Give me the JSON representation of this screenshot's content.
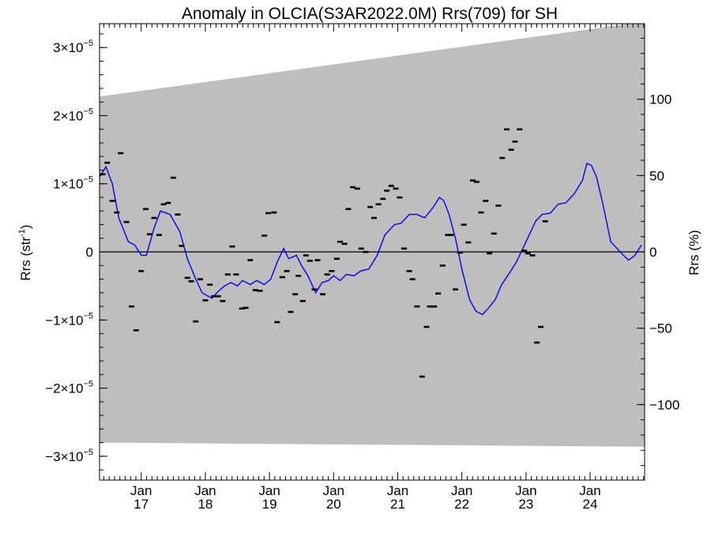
{
  "chart_data": {
    "type": "line",
    "title": "Anomaly in OLCIA(S3AR2022.0M) Rrs(709) for SH",
    "ylabel_left": "Rrs (str",
    "ylabel_left_sup": "-1",
    "ylabel_left_close": ")",
    "ylabel_right": "Rrs (%)",
    "ylim": [
      -3.35e-05,
      3.35e-05
    ],
    "y2lim": [
      149.5,
      -149.5
    ],
    "xlim": [
      2016.35,
      2024.85
    ],
    "x_ticks": [
      {
        "label": "Jan",
        "year": "17",
        "x": 2017.0
      },
      {
        "label": "Jan",
        "year": "18",
        "x": 2018.0
      },
      {
        "label": "Jan",
        "year": "19",
        "x": 2019.0
      },
      {
        "label": "Jan",
        "year": "20",
        "x": 2020.0
      },
      {
        "label": "Jan",
        "year": "21",
        "x": 2021.0
      },
      {
        "label": "Jan",
        "year": "22",
        "x": 2022.0
      },
      {
        "label": "Jan",
        "year": "23",
        "x": 2023.0
      },
      {
        "label": "Jan",
        "year": "24",
        "x": 2024.0
      }
    ],
    "y_ticks_left": [
      {
        "mant": "3×10",
        "exp": "−5",
        "v": 3e-05
      },
      {
        "mant": "2×10",
        "exp": "−5",
        "v": 2e-05
      },
      {
        "mant": "1×10",
        "exp": "−5",
        "v": 1e-05
      },
      {
        "mant": "0",
        "exp": "",
        "v": 0
      },
      {
        "mant": "−1×10",
        "exp": "−5",
        "v": -1e-05
      },
      {
        "mant": "−2×10",
        "exp": "−5",
        "v": -2e-05
      },
      {
        "mant": "−3×10",
        "exp": "−5",
        "v": -3e-05
      }
    ],
    "y_ticks_right": [
      {
        "label": "−100",
        "v": -100
      },
      {
        "label": "−50",
        "v": -50
      },
      {
        "label": "0",
        "v": 0
      },
      {
        "label": "50",
        "v": 50
      },
      {
        "label": "100",
        "v": 100
      }
    ],
    "band": {
      "color": "#bebebe",
      "upper": [
        [
          2016.35,
          2.28e-05
        ],
        [
          2024.85,
          3.38e-05
        ]
      ],
      "lower": [
        [
          2016.35,
          -2.8e-05
        ],
        [
          2024.85,
          -2.86e-05
        ]
      ]
    },
    "series": [
      {
        "kind": "line",
        "color": "#0000ff",
        "points": [
          [
            2016.35,
            1.1e-05
          ],
          [
            2016.45,
            1.25e-05
          ],
          [
            2016.55,
            1e-05
          ],
          [
            2016.65,
            5e-06
          ],
          [
            2016.8,
            1.5e-06
          ],
          [
            2016.9,
            1e-06
          ],
          [
            2017.0,
            -5e-07
          ],
          [
            2017.08,
            -5e-07
          ],
          [
            2017.2,
            3.5e-06
          ],
          [
            2017.3,
            6e-06
          ],
          [
            2017.45,
            5.5e-06
          ],
          [
            2017.6,
            3e-06
          ],
          [
            2017.72,
            -1e-06
          ],
          [
            2017.85,
            -4e-06
          ],
          [
            2017.95,
            -6e-06
          ],
          [
            2018.1,
            -6.8e-06
          ],
          [
            2018.2,
            -5.8e-06
          ],
          [
            2018.3,
            -5e-06
          ],
          [
            2018.4,
            -4.5e-06
          ],
          [
            2018.5,
            -5e-06
          ],
          [
            2018.58,
            -4.2e-06
          ],
          [
            2018.7,
            -4.8e-06
          ],
          [
            2018.8,
            -4.2e-06
          ],
          [
            2018.92,
            -4.8e-06
          ],
          [
            2019.02,
            -4e-06
          ],
          [
            2019.12,
            -1.5e-06
          ],
          [
            2019.22,
            5e-07
          ],
          [
            2019.3,
            -1e-06
          ],
          [
            2019.42,
            -5e-07
          ],
          [
            2019.5,
            -2e-06
          ],
          [
            2019.6,
            -3.5e-06
          ],
          [
            2019.72,
            -6e-06
          ],
          [
            2019.82,
            -4.5e-06
          ],
          [
            2019.92,
            -4.2e-06
          ],
          [
            2020.0,
            -3.5e-06
          ],
          [
            2020.1,
            -4.2e-06
          ],
          [
            2020.2,
            -3.3e-06
          ],
          [
            2020.32,
            -3.5e-06
          ],
          [
            2020.42,
            -2.8e-06
          ],
          [
            2020.55,
            -2.5e-06
          ],
          [
            2020.68,
            -5e-07
          ],
          [
            2020.8,
            2.5e-06
          ],
          [
            2020.95,
            4e-06
          ],
          [
            2021.05,
            4.2e-06
          ],
          [
            2021.18,
            5.5e-06
          ],
          [
            2021.3,
            5.5e-06
          ],
          [
            2021.42,
            5e-06
          ],
          [
            2021.55,
            6.5e-06
          ],
          [
            2021.65,
            8e-06
          ],
          [
            2021.72,
            7.5e-06
          ],
          [
            2021.8,
            5.5e-06
          ],
          [
            2021.9,
            2e-06
          ],
          [
            2022.0,
            -2.5e-06
          ],
          [
            2022.12,
            -7e-06
          ],
          [
            2022.22,
            -8.7e-06
          ],
          [
            2022.32,
            -9.2e-06
          ],
          [
            2022.42,
            -8.2e-06
          ],
          [
            2022.52,
            -7e-06
          ],
          [
            2022.62,
            -4.8e-06
          ],
          [
            2022.75,
            -3e-06
          ],
          [
            2022.85,
            -1.5e-06
          ],
          [
            2022.95,
            5e-07
          ],
          [
            2023.05,
            2.5e-06
          ],
          [
            2023.15,
            4.5e-06
          ],
          [
            2023.25,
            5.5e-06
          ],
          [
            2023.38,
            5.7e-06
          ],
          [
            2023.5,
            7e-06
          ],
          [
            2023.62,
            7.2e-06
          ],
          [
            2023.75,
            8.5e-06
          ],
          [
            2023.88,
            1.05e-05
          ],
          [
            2023.95,
            1.3e-05
          ],
          [
            2024.02,
            1.27e-05
          ],
          [
            2024.1,
            1.1e-05
          ],
          [
            2024.2,
            7e-06
          ],
          [
            2024.32,
            1.5e-06
          ],
          [
            2024.42,
            5e-07
          ],
          [
            2024.52,
            -5e-07
          ],
          [
            2024.6,
            -1.2e-06
          ],
          [
            2024.7,
            -5e-07
          ],
          [
            2024.8,
            1e-06
          ]
        ]
      },
      {
        "kind": "marker",
        "marker": "dash",
        "color": "#000000",
        "points": [
          [
            2016.4,
            1.14e-05
          ],
          [
            2016.47,
            1.31e-05
          ],
          [
            2016.55,
            7.5e-06
          ],
          [
            2016.62,
            5.8e-06
          ],
          [
            2016.68,
            1.45e-05
          ],
          [
            2016.77,
            4.4e-06
          ],
          [
            2016.85,
            -8e-06
          ],
          [
            2016.92,
            -1.15e-05
          ],
          [
            2017.0,
            -2.8e-06
          ],
          [
            2017.07,
            6.3e-06
          ],
          [
            2017.13,
            2.6e-06
          ],
          [
            2017.2,
            5e-06
          ],
          [
            2017.28,
            2.5e-06
          ],
          [
            2017.35,
            7e-06
          ],
          [
            2017.42,
            7.2e-06
          ],
          [
            2017.5,
            1.09e-05
          ],
          [
            2017.57,
            5.5e-06
          ],
          [
            2017.63,
            9e-07
          ],
          [
            2017.72,
            -3.8e-06
          ],
          [
            2017.78,
            -4.3e-06
          ],
          [
            2017.85,
            -1.02e-05
          ],
          [
            2017.92,
            -4e-06
          ],
          [
            2018.0,
            -7.1e-06
          ],
          [
            2018.07,
            -4.8e-06
          ],
          [
            2018.13,
            -6.5e-06
          ],
          [
            2018.2,
            -6.5e-06
          ],
          [
            2018.27,
            -7.2e-06
          ],
          [
            2018.35,
            -3.3e-06
          ],
          [
            2018.42,
            8e-07
          ],
          [
            2018.48,
            -3.3e-06
          ],
          [
            2018.57,
            -8.3e-06
          ],
          [
            2018.63,
            -8.2e-06
          ],
          [
            2018.7,
            -1.2e-06
          ],
          [
            2018.78,
            -5.6e-06
          ],
          [
            2018.85,
            -5.7e-06
          ],
          [
            2018.92,
            2.4e-06
          ],
          [
            2018.98,
            5.7e-06
          ],
          [
            2019.07,
            5.8e-06
          ],
          [
            2019.12,
            -1.03e-05
          ],
          [
            2019.2,
            -3.7e-06
          ],
          [
            2019.27,
            -2.8e-06
          ],
          [
            2019.33,
            -8.8e-06
          ],
          [
            2019.4,
            -6.2e-06
          ],
          [
            2019.45,
            -3.5e-06
          ],
          [
            2019.52,
            -7.2e-06
          ],
          [
            2019.57,
            -5e-07
          ],
          [
            2019.63,
            -1.3e-06
          ],
          [
            2019.7,
            -5.5e-06
          ],
          [
            2019.75,
            -1.2e-06
          ],
          [
            2019.83,
            -6.2e-06
          ],
          [
            2019.9,
            -3.3e-06
          ],
          [
            2019.97,
            -2.8e-06
          ],
          [
            2020.05,
            -1e-06
          ],
          [
            2020.1,
            1.5e-06
          ],
          [
            2020.17,
            1.2e-06
          ],
          [
            2020.23,
            6.3e-06
          ],
          [
            2020.3,
            9.5e-06
          ],
          [
            2020.37,
            9.3e-06
          ],
          [
            2020.43,
            5e-07
          ],
          [
            2020.5,
            0.0
          ],
          [
            2020.57,
            6.6e-06
          ],
          [
            2020.63,
            5e-06
          ],
          [
            2020.7,
            7e-06
          ],
          [
            2020.77,
            7.8e-06
          ],
          [
            2020.83,
            9e-06
          ],
          [
            2020.9,
            9.7e-06
          ],
          [
            2020.97,
            9.3e-06
          ],
          [
            2021.03,
            8e-06
          ],
          [
            2021.1,
            5e-07
          ],
          [
            2021.18,
            -2.8e-06
          ],
          [
            2021.23,
            -4e-06
          ],
          [
            2021.3,
            -8e-06
          ],
          [
            2021.38,
            -1.83e-05
          ],
          [
            2021.45,
            -1.1e-05
          ],
          [
            2021.5,
            -8e-06
          ],
          [
            2021.57,
            -8e-06
          ],
          [
            2021.63,
            -6.1e-06
          ],
          [
            2021.7,
            -2e-06
          ],
          [
            2021.78,
            2.5e-06
          ],
          [
            2021.83,
            2.5e-06
          ],
          [
            2021.9,
            -5.5e-06
          ],
          [
            2021.97,
            -1e-07
          ],
          [
            2022.03,
            4e-06
          ],
          [
            2022.1,
            1.4e-06
          ],
          [
            2022.17,
            1.05e-05
          ],
          [
            2022.23,
            1.03e-05
          ],
          [
            2022.3,
            5.8e-06
          ],
          [
            2022.37,
            7.5e-06
          ],
          [
            2022.43,
            -2e-07
          ],
          [
            2022.5,
            2.7e-06
          ],
          [
            2022.57,
            6.8e-06
          ],
          [
            2022.63,
            1.38e-05
          ],
          [
            2022.7,
            1.8e-05
          ],
          [
            2022.77,
            1.5e-05
          ],
          [
            2022.83,
            1.62e-05
          ],
          [
            2022.9,
            1.8e-05
          ],
          [
            2022.97,
            2e-07
          ],
          [
            2023.03,
            -2e-07
          ],
          [
            2023.1,
            -5e-07
          ],
          [
            2023.17,
            -1.33e-05
          ],
          [
            2023.23,
            -1.1e-05
          ],
          [
            2023.3,
            4.5e-06
          ]
        ]
      }
    ]
  }
}
